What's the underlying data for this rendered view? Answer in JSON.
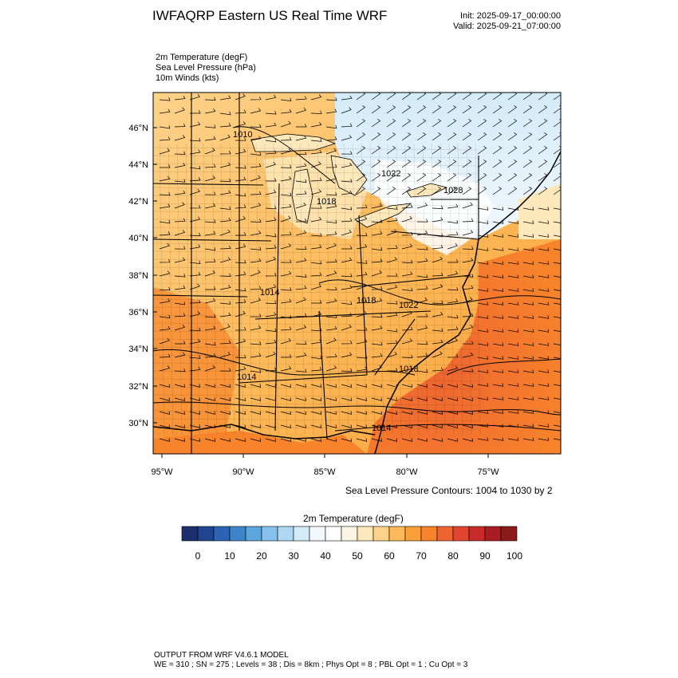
{
  "header": {
    "title": "IWFAQRP Eastern US Real Time WRF",
    "init": "Init: 2025-09-17_00:00:00",
    "valid": "Valid: 2025-09-21_07:00:00"
  },
  "fields": [
    "2m Temperature   (degF)",
    "Sea Level Pressure   (hPa)",
    "10m Winds   (kts)"
  ],
  "map": {
    "lat_labels": [
      "46°N",
      "44°N",
      "42°N",
      "40°N",
      "38°N",
      "36°N",
      "34°N",
      "32°N",
      "30°N"
    ],
    "lon_labels": [
      "95°W",
      "90°W",
      "85°W",
      "80°W",
      "75°W"
    ],
    "pressure_labels": [
      "1010",
      "1022",
      "1028",
      "1018",
      "1014",
      "1018",
      "1022",
      "1014",
      "1018",
      "1014"
    ],
    "contour_note": "Sea Level Pressure Contours: 1004 to 1030 by 2"
  },
  "colorbar": {
    "title": "2m Temperature  (degF)",
    "ticks": [
      "0",
      "10",
      "20",
      "30",
      "40",
      "50",
      "60",
      "70",
      "80",
      "90",
      "100"
    ],
    "colors": [
      "#1c2e6b",
      "#21448f",
      "#2c64b3",
      "#3f84c8",
      "#5ca6dd",
      "#85c1ea",
      "#aed7f2",
      "#d3ebf8",
      "#f2f8fc",
      "#ffffff",
      "#fdf5e4",
      "#fde8bb",
      "#fdd28a",
      "#fdba5a",
      "#fba038",
      "#f7832b",
      "#ee6430",
      "#e0452e",
      "#c92a29",
      "#a81d23",
      "#8b1a1a"
    ]
  },
  "footer": {
    "line1": "OUTPUT FROM WRF V4.6.1 MODEL",
    "line2": "WE = 310 ; SN = 275 ; Levels = 38 ; Dis = 8km ; Phys Opt = 8 ; PBL Opt = 1 ; Cu Opt = 3"
  }
}
